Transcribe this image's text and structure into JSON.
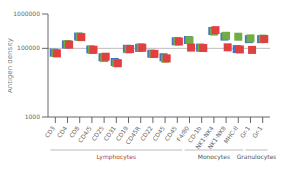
{
  "chart_data": {
    "type": "scatter",
    "categories": [
      "CD3",
      "CD4",
      "CD8",
      "CD4/5",
      "CD25",
      "CD31",
      "CD19",
      "CD45R",
      "CD22",
      "CD45",
      "CD45",
      "F4/80",
      "CD-1b",
      "NK1·NK4",
      "NK1·NK8",
      "MHC-II",
      "Gr-1",
      "Gr-1"
    ],
    "series": [
      {
        "color": "#4472C4",
        "marker": "square",
        "values": [
          75000,
          130000,
          220000,
          93000,
          55000,
          40000,
          97000,
          103000,
          70000,
          55000,
          160000,
          175000,
          105000,
          320000,
          220000,
          95000,
          185000,
          185000
        ]
      },
      {
        "color": "#70AD47",
        "marker": "square",
        "values": [
          73000,
          133000,
          218000,
          90000,
          52000,
          37000,
          93000,
          107000,
          68000,
          50000,
          163000,
          172000,
          103000,
          308000,
          232000,
          218000,
          195000,
          192000
        ]
      },
      {
        "color": "#e04040",
        "marker": "square",
        "values": [
          71000,
          128000,
          212000,
          91000,
          57000,
          37000,
          96000,
          104000,
          69000,
          51000,
          158000,
          105000,
          102000,
          338000,
          107000,
          93000,
          90000,
          187000
        ]
      }
    ],
    "ylabel": "Antigen density",
    "ylim": [
      1000,
      1000000
    ],
    "yticks": [
      1000,
      100000,
      1000000
    ],
    "log": "y",
    "grid": false,
    "ref_line": 100000,
    "annotations": [
      {
        "text": "Lymphocytes",
        "start": 0,
        "end": 10,
        "color": "#c0392b"
      },
      {
        "text": "Monocytes",
        "start": 11,
        "end": 15,
        "color": "#555555"
      },
      {
        "text": "Granulocytes",
        "start": 16,
        "end": 17,
        "color": "#555555"
      }
    ]
  }
}
